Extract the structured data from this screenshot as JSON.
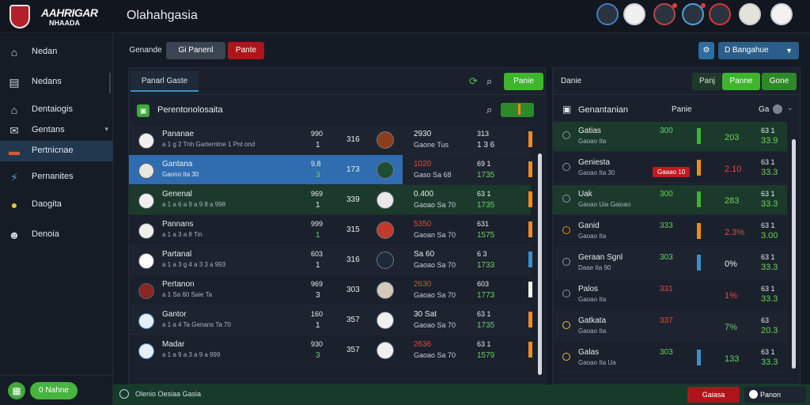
{
  "brand": {
    "line1": "AAHRIGAR",
    "line2": "NHAADA"
  },
  "page_title": "Olahahgasia",
  "sidebar": {
    "items": [
      {
        "label": "Nedan",
        "icon": "home-icon",
        "glyph": "⌂"
      },
      {
        "label": "Nedans",
        "icon": "document-icon",
        "glyph": "▤"
      },
      {
        "label": "Dentaiogis",
        "icon": "home-icon",
        "glyph": "⌂"
      },
      {
        "label": "Gentans",
        "icon": "inbox-icon",
        "glyph": "✉"
      },
      {
        "label": "Pertnicnae",
        "icon": "folder-icon",
        "glyph": "▬"
      },
      {
        "label": "Pernanites",
        "icon": "bolt-icon",
        "glyph": "⚡"
      },
      {
        "label": "Daogita",
        "icon": "coin-icon",
        "glyph": "●"
      },
      {
        "label": "Denoia",
        "icon": "users-icon",
        "glyph": "☻"
      }
    ],
    "bottom_button": "0 Nahne"
  },
  "filters": {
    "left": "Genande",
    "mid": "Gi Panenl",
    "right": "Pante"
  },
  "topright": {
    "select": "D Bangahue"
  },
  "left_panel": {
    "tab": "Panarl Gaste",
    "green_btn": "Panie",
    "list_title": "Perentonolosaita",
    "rows": [
      {
        "name": "Pananae",
        "sub": "a 1 g 2 Tnh Garterntne 1 Pnt ond",
        "v1": "990",
        "v1b": "1",
        "v2": "316",
        "o1": "2930",
        "o2": "Gaone Tus",
        "o3": "313",
        "o4": "1 3 6"
      },
      {
        "name": "Gantana",
        "sub": "Gaono Ita 30",
        "v1": "9.8",
        "v1b": "3",
        "v2": "173",
        "o1": "1020",
        "o2": "Gaso Sa 68",
        "o3": "69 1",
        "o4": "1735"
      },
      {
        "name": "Genenal",
        "sub": "a 1 a 6 a 9 a 9 8 a 998",
        "v1": "969",
        "v1b": "1",
        "v2": "339",
        "o1": "0.400",
        "o2": "Gaoao Sa 70",
        "o3": "63 1",
        "o4": "1735"
      },
      {
        "name": "Pannans",
        "sub": "a 1 a 3 a 8 Tin",
        "v1": "999",
        "v1b": "1",
        "v2": "315",
        "o1": "5350",
        "o2": "Gaoan Sa 70",
        "o3": "631",
        "o4": "1575"
      },
      {
        "name": "Partanal",
        "sub": "a 1 a 3 g 4 a 3 3 a 993",
        "v1": "603",
        "v1b": "1",
        "v2": "316",
        "o1": "Sa 60",
        "o2": "Gaoao Sa 70",
        "o3": "6 3",
        "o4": "1733"
      },
      {
        "name": "Pertanon",
        "sub": "a 1 Sa 60 Saie Ta",
        "v1": "969",
        "v1b": "3",
        "v2": "303",
        "o1": "2630",
        "o2": "Gaoao Sa 70",
        "o3": "603",
        "o4": "1773"
      },
      {
        "name": "Gantor",
        "sub": "a 1 a 4 Ta Genans Ta 70",
        "v1": "160",
        "v1b": "1",
        "v2": "357",
        "o1": "30 Sat",
        "o2": "Gaoao Sa 70",
        "o3": "63 1",
        "o4": "1735"
      },
      {
        "name": "Madar",
        "sub": "a 1 a 9 a 3 a 9 a 999",
        "v1": "930",
        "v1b": "3",
        "v2": "357",
        "o1": "2636",
        "o2": "Gaoao Sa 70",
        "o3": "63 1",
        "o4": "1579"
      }
    ]
  },
  "right_panel": {
    "tab_label": "Danie",
    "tabs": [
      "Panj",
      "Panne",
      "Gone"
    ],
    "list_title": "Genantanian",
    "col2": "Panie",
    "col3": "Ga",
    "rows": [
      {
        "name": "Gatias",
        "sub": "Gaoao Ita",
        "m1": "300",
        "m2": "",
        "r1": "203",
        "r2": "63 1",
        "r3": "33.9"
      },
      {
        "name": "Geniesta",
        "sub": "Gaoao Ita 30",
        "m1": "Gaaao 10",
        "m2": "",
        "r1": "2.10",
        "r2": "63 1",
        "r3": "33.3"
      },
      {
        "name": "Uak",
        "sub": "Gaoao Uia Gaioao",
        "m1": "300",
        "m2": "",
        "r1": "283",
        "r2": "63 1",
        "r3": "33.3"
      },
      {
        "name": "Ganid",
        "sub": "Gaoao Ita",
        "m1": "333",
        "m2": "",
        "r1": "2.3%",
        "r2": "63 1",
        "r3": "3.00"
      },
      {
        "name": "Geraan Sgnl",
        "sub": "Daae Ita 90",
        "m1": "303",
        "m2": "",
        "r1": "0%",
        "r2": "63 1",
        "r3": "33.3"
      },
      {
        "name": "Palos",
        "sub": "Gaoao Ita",
        "m1": "331",
        "m2": "",
        "r1": "1%",
        "r2": "63 1",
        "r3": "33.3"
      },
      {
        "name": "Gatkata",
        "sub": "Gaoao Ita",
        "m1": "337",
        "m2": "",
        "r1": "7%",
        "r2": "63",
        "r3": "20.3"
      },
      {
        "name": "Galas",
        "sub": "Gaoao Ita Ua",
        "m1": "303",
        "m2": "",
        "r1": "133",
        "r2": "63 1",
        "r3": "33.3"
      }
    ]
  },
  "statusbar": {
    "text": "Olenio Oesiaa Gasia",
    "red_button": "Gaiasa",
    "dark_button": "Panon"
  },
  "colors": {
    "accent_green": "#3fb52e",
    "accent_blue": "#2b5e8a",
    "danger_red": "#b0141b"
  }
}
